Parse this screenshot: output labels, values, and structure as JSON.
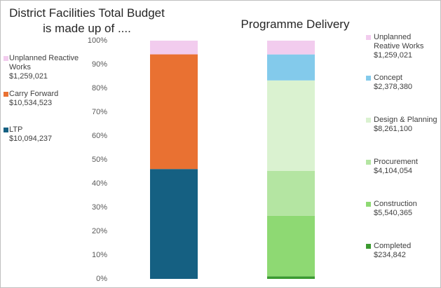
{
  "chart_data": [
    {
      "type": "bar",
      "stacked": true,
      "percent": true,
      "title": [
        "District Facilities Total Budget",
        "is made up of ...."
      ],
      "y_ticks": [
        "0%",
        "10%",
        "20%",
        "30%",
        "40%",
        "50%",
        "60%",
        "70%",
        "80%",
        "90%",
        "100%"
      ],
      "ylim": [
        0,
        100
      ],
      "grid": false,
      "legend_position": "left",
      "series": [
        {
          "name": "Unplanned Reactive Works",
          "value_label": "$1,259,021",
          "value": 1259021,
          "color": "#f2ccee"
        },
        {
          "name": "Carry Forward",
          "value_label": "$10,534,523",
          "value": 10534523,
          "color": "#e97132"
        },
        {
          "name": "LTP",
          "value_label": "$10,094,237",
          "value": 10094237,
          "color": "#156082"
        }
      ]
    },
    {
      "type": "bar",
      "stacked": true,
      "percent": true,
      "title": [
        "Programme Delivery"
      ],
      "ylim": [
        0,
        100
      ],
      "grid": false,
      "legend_position": "right",
      "series": [
        {
          "name": "Unplanned Reative Works",
          "value_label": "$1,259,021",
          "value": 1259021,
          "color": "#f2ccee"
        },
        {
          "name": "Concept",
          "value_label": "$2,378,380",
          "value": 2378380,
          "color": "#83caeb"
        },
        {
          "name": "Design & Planning",
          "value_label": "$8,261,100",
          "value": 8261100,
          "color": "#daf2d0"
        },
        {
          "name": "Procurement",
          "value_label": "$4,104,054",
          "value": 4104054,
          "color": "#b4e5a2"
        },
        {
          "name": "Construction",
          "value_label": "$5,540,365",
          "value": 5540365,
          "color": "#8ed973"
        },
        {
          "name": "Completed",
          "value_label": "$234,842",
          "value": 234842,
          "color": "#3b9a30"
        }
      ]
    }
  ]
}
